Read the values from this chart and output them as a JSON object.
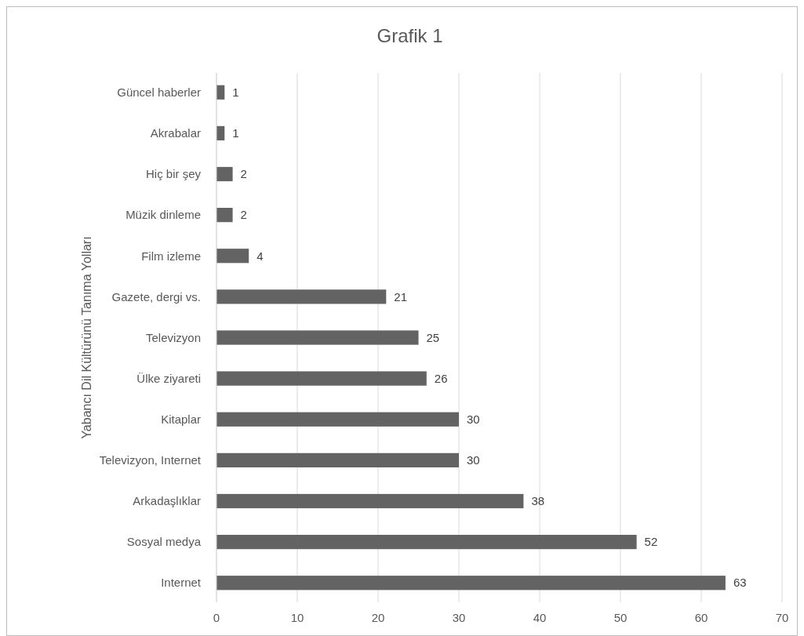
{
  "chart_data": {
    "type": "bar",
    "orientation": "horizontal",
    "title": "Grafik 1",
    "ylabel": "Yabancı Dil Kültürünü Tanıma Yolları",
    "categories": [
      "Güncel haberler",
      "Akrabalar",
      "Hiç bir şey",
      "Müzik dinleme",
      "Film izleme",
      "Gazete, dergi vs.",
      "Televizyon",
      "Ülke ziyareti",
      "Kitaplar",
      "Televizyon, Internet",
      "Arkadaşlıklar",
      "Sosyal medya",
      "Internet"
    ],
    "values": [
      1,
      1,
      2,
      2,
      4,
      21,
      25,
      26,
      30,
      30,
      38,
      52,
      63
    ],
    "color": "#636363",
    "xlim": [
      0,
      70
    ],
    "xticks": [
      0,
      10,
      20,
      30,
      40,
      50,
      60,
      70
    ],
    "grid": "x",
    "data_labels": true
  }
}
